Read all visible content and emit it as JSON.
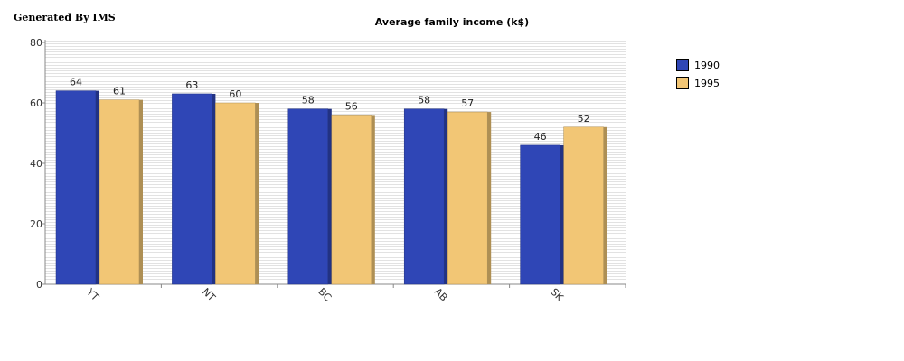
{
  "watermark": "Generated By IMS",
  "chart_data": {
    "type": "bar",
    "title": "Average family income (k$)",
    "xlabel": "",
    "ylabel": "",
    "categories": [
      "YT",
      "NT",
      "BC",
      "AB",
      "SK"
    ],
    "series": [
      {
        "name": "1990",
        "values": [
          64,
          63,
          58,
          58,
          46
        ],
        "color": "#2f46b6"
      },
      {
        "name": "1995",
        "values": [
          61,
          60,
          56,
          57,
          52
        ],
        "color": "#f2c675"
      }
    ],
    "ylim": [
      0,
      80
    ],
    "yticks": [
      0,
      20,
      40,
      60,
      80
    ],
    "grid": true,
    "legend_position": "right"
  }
}
